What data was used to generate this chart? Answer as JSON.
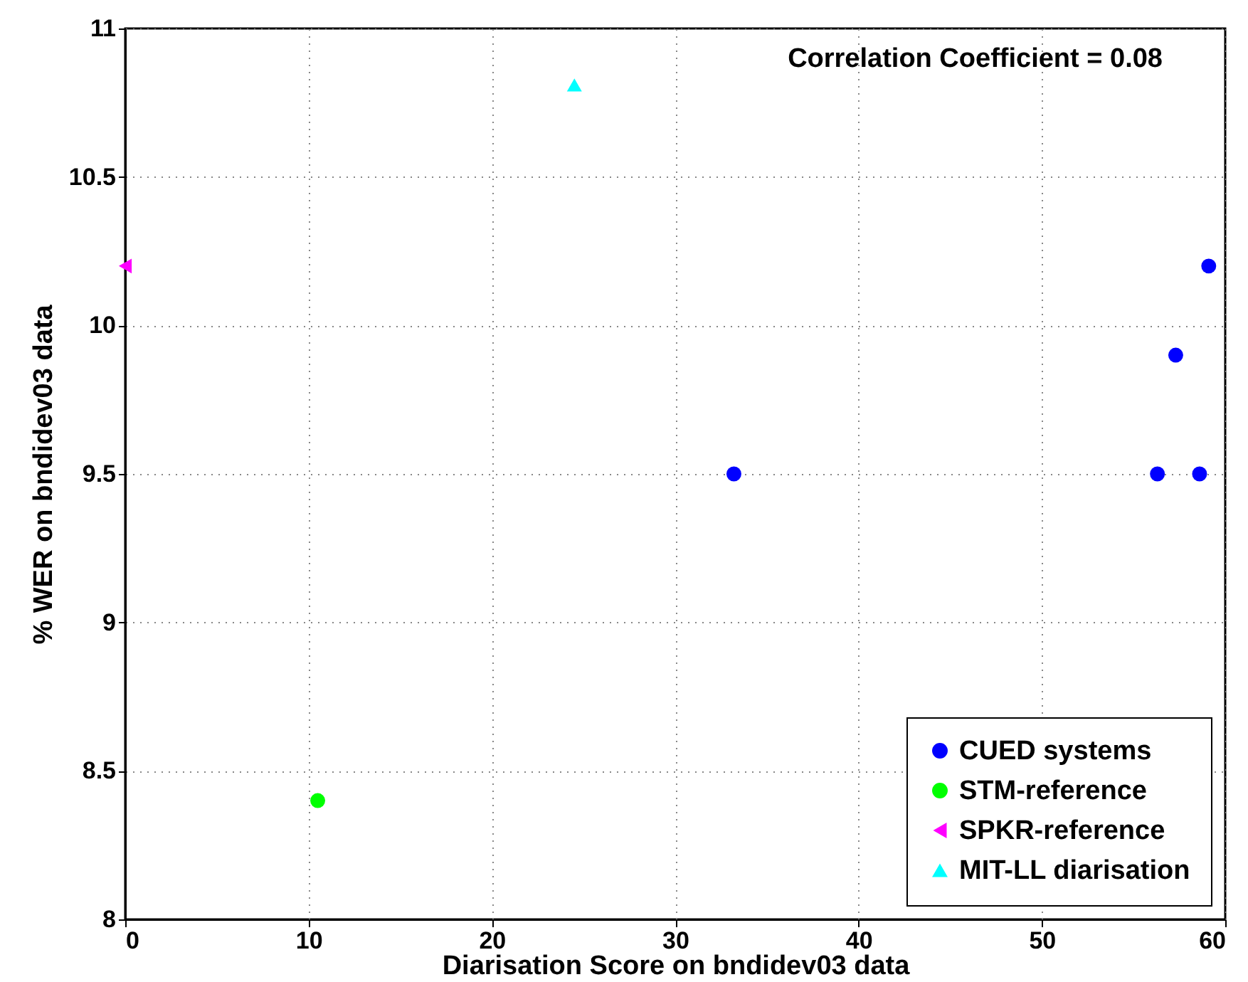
{
  "chart_data": {
    "type": "scatter",
    "xlabel": "Diarisation Score on bndidev03 data",
    "ylabel": "% WER on bndidev03 data",
    "xlim": [
      0,
      60
    ],
    "xticks": [
      0,
      10,
      20,
      30,
      40,
      50,
      60
    ],
    "ylim": [
      8,
      11
    ],
    "yticks": [
      8,
      8.5,
      9,
      9.5,
      10,
      10.5,
      11
    ],
    "grid": true,
    "legend": "bottom right",
    "annotations": [
      "Correlation Coefficient = 0.08"
    ],
    "series": [
      {
        "name": "CUED systems",
        "color": "#0000ff",
        "marker": "circle",
        "x": [
          33.2,
          56.3,
          57.3,
          58.6,
          59.1
        ],
        "values": [
          9.5,
          9.5,
          9.9,
          9.5,
          10.2
        ]
      },
      {
        "name": "STM-reference",
        "color": "#00ff00",
        "marker": "circle",
        "x": [
          10.5
        ],
        "values": [
          8.4
        ]
      },
      {
        "name": "SPKR-reference",
        "color": "#ff00ff",
        "marker": "triangle-left",
        "x": [
          0
        ],
        "values": [
          10.2
        ]
      },
      {
        "name": "MIT-LL diarisation",
        "color": "#00ffff",
        "marker": "triangle",
        "x": [
          24.5
        ],
        "values": [
          10.81
        ]
      }
    ]
  }
}
